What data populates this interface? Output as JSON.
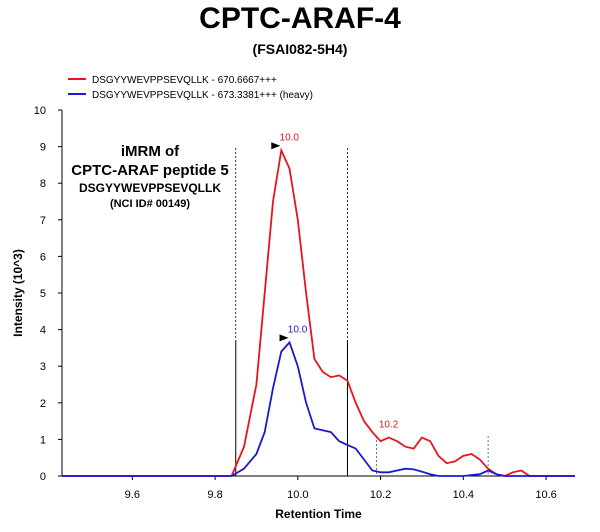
{
  "title": "CPTC-ARAF-4",
  "subtitle": "(FSAI082-5H4)",
  "annotation": {
    "line1": "iMRM of",
    "line2": "CPTC-ARAF peptide 5",
    "line3": "DSGYYWEVPPSEVQLLK",
    "line4": "(NCI ID# 00149)"
  },
  "chart_data": {
    "type": "line",
    "xlabel": "Retention Time",
    "ylabel": "Intensity (10^3)",
    "xlim": [
      9.43,
      10.67
    ],
    "ylim": [
      0,
      10
    ],
    "xticks": [
      9.6,
      9.8,
      10.0,
      10.2,
      10.4,
      10.6
    ],
    "xtick_labels": [
      "9.6",
      "9.8",
      "10.0",
      "10.2",
      "10.4",
      "10.6"
    ],
    "yticks": [
      0,
      1,
      2,
      3,
      4,
      5,
      6,
      7,
      8,
      9,
      10
    ],
    "ytick_labels": [
      "0",
      "1",
      "2",
      "3",
      "4",
      "5",
      "6",
      "7",
      "8",
      "9",
      "10"
    ],
    "grid": false,
    "legend_position": "top-left",
    "series": [
      {
        "name": "DSGYYWEVPPSEVQLLK - 670.6667+++",
        "color": "#e8141c",
        "x": [
          9.43,
          9.84,
          9.87,
          9.9,
          9.92,
          9.94,
          9.96,
          9.98,
          10.0,
          10.02,
          10.04,
          10.06,
          10.08,
          10.1,
          10.12,
          10.14,
          10.16,
          10.18,
          10.2,
          10.22,
          10.24,
          10.26,
          10.28,
          10.3,
          10.32,
          10.34,
          10.36,
          10.38,
          10.4,
          10.42,
          10.44,
          10.46,
          10.48,
          10.5,
          10.52,
          10.54,
          10.56,
          10.67
        ],
        "y": [
          0,
          0,
          0.8,
          2.5,
          5.0,
          7.5,
          8.9,
          8.4,
          7.0,
          5.0,
          3.2,
          2.85,
          2.7,
          2.75,
          2.6,
          2.0,
          1.5,
          1.2,
          0.95,
          1.05,
          0.95,
          0.8,
          0.75,
          1.05,
          0.95,
          0.55,
          0.35,
          0.4,
          0.55,
          0.6,
          0.45,
          0.2,
          0.05,
          0.0,
          0.1,
          0.15,
          0.0,
          0
        ]
      },
      {
        "name": "DSGYYWEVPPSEVQLLK - 673.3381+++ (heavy)",
        "color": "#1a1ad0",
        "x": [
          9.43,
          9.84,
          9.87,
          9.9,
          9.92,
          9.94,
          9.96,
          9.98,
          10.0,
          10.02,
          10.04,
          10.06,
          10.08,
          10.1,
          10.12,
          10.14,
          10.16,
          10.18,
          10.2,
          10.22,
          10.24,
          10.26,
          10.28,
          10.3,
          10.32,
          10.34,
          10.4,
          10.44,
          10.46,
          10.48,
          10.5,
          10.67
        ],
        "y": [
          0,
          0,
          0.2,
          0.6,
          1.2,
          2.4,
          3.4,
          3.65,
          3.0,
          2.0,
          1.3,
          1.25,
          1.2,
          0.95,
          0.85,
          0.75,
          0.45,
          0.15,
          0.1,
          0.1,
          0.15,
          0.2,
          0.18,
          0.12,
          0.05,
          0.0,
          0.0,
          0.05,
          0.15,
          0.05,
          0.0,
          0
        ]
      }
    ],
    "peak_labels": [
      {
        "text": "10.0",
        "x": 9.96,
        "y": 8.9,
        "color": "#e8141c"
      },
      {
        "text": "10.0",
        "x": 9.98,
        "y": 3.65,
        "color": "#1a1ad0"
      },
      {
        "text": "10.2",
        "x": 10.2,
        "y": 1.05,
        "color": "#e8141c"
      }
    ],
    "integration_boundaries": [
      {
        "x": 9.85,
        "style": "solid-lower"
      },
      {
        "x": 10.12,
        "style": "solid-lower"
      },
      {
        "x": 10.19,
        "style": "dotted-short"
      },
      {
        "x": 10.46,
        "style": "dotted-short"
      }
    ]
  }
}
